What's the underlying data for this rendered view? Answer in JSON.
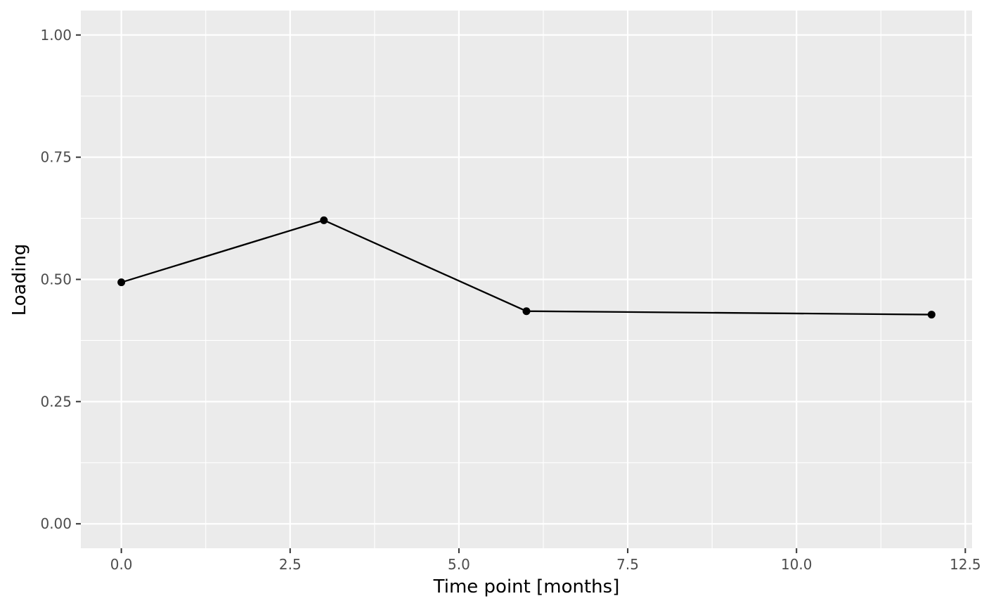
{
  "chart_data": {
    "type": "line",
    "title": "",
    "xlabel": "Time point [months]",
    "ylabel": "Loading",
    "xlim": [
      -0.6,
      12.6
    ],
    "ylim": [
      -0.05,
      1.05
    ],
    "x_ticks": [
      0,
      2.5,
      5,
      7.5,
      10,
      12.5
    ],
    "x_tick_labels": [
      "0.0",
      "2.5",
      "5.0",
      "7.5",
      "10.0",
      "12.5"
    ],
    "y_ticks": [
      0,
      0.25,
      0.5,
      0.75,
      1
    ],
    "y_tick_labels": [
      "0.00",
      "0.25",
      "0.50",
      "0.75",
      "1.00"
    ],
    "grid": true,
    "series": [
      {
        "x": [
          0,
          3,
          6,
          12
        ],
        "y": [
          0.494,
          0.621,
          0.435,
          0.428
        ]
      }
    ],
    "colors": {
      "panel": "#ebebeb",
      "grid": "#ffffff",
      "line": "#000000",
      "tick_label": "#4d4d4d"
    }
  }
}
